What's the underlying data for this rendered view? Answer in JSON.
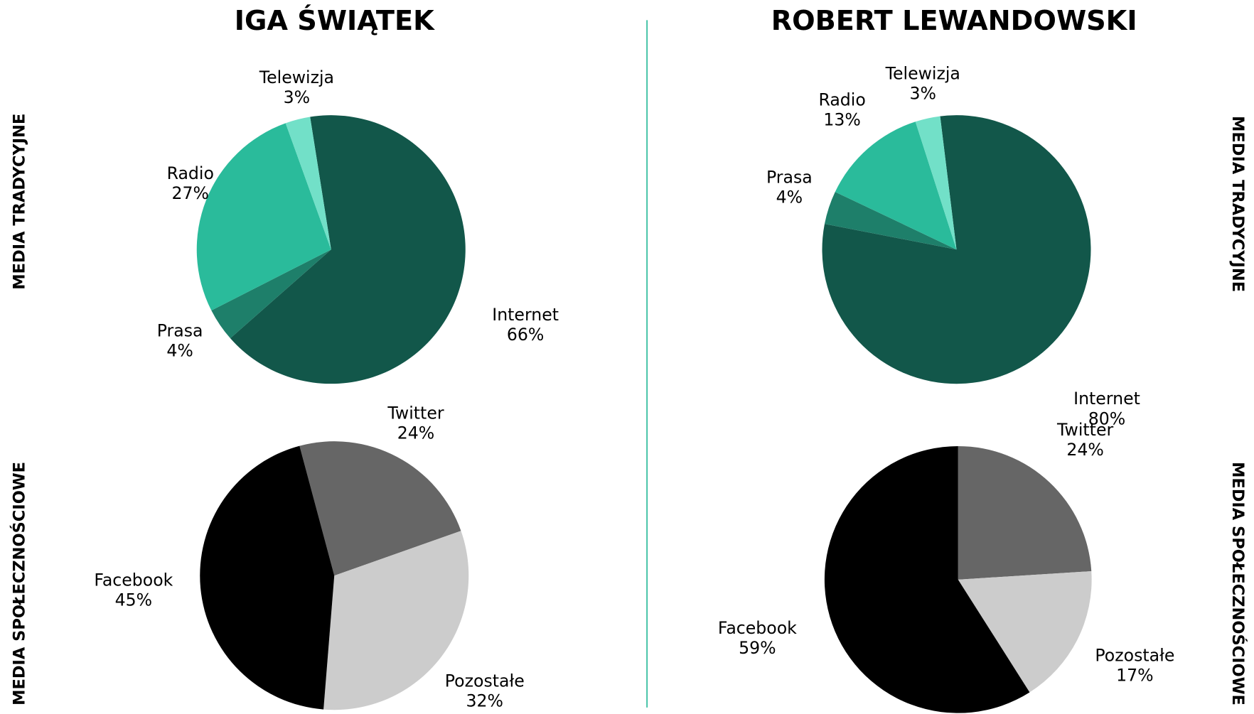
{
  "titles": [
    "IGA ŚWIĄTEK",
    "ROBERT LEWANDOWSKI"
  ],
  "row_labels": [
    "MEDIA TRADYCYJNE",
    "MEDIA SPOŁECZNOŚCIOWE"
  ],
  "chart_data": [
    {
      "type": "pie",
      "categories": [
        "Internet",
        "Prasa",
        "Radio",
        "Telewizja"
      ],
      "values": [
        66,
        4,
        27,
        3
      ],
      "value_labels": [
        "66%",
        "4%",
        "27%",
        "3%"
      ],
      "colors": [
        "#12574a",
        "#1e7f6a",
        "#2abb9b",
        "#72e0c8"
      ]
    },
    {
      "type": "pie",
      "categories": [
        "Internet",
        "Prasa",
        "Radio",
        "Telewizja"
      ],
      "values": [
        80,
        4,
        13,
        3
      ],
      "value_labels": [
        "80%",
        "4%",
        "13%",
        "3%"
      ],
      "colors": [
        "#12574a",
        "#1e7f6a",
        "#2abb9b",
        "#72e0c8"
      ]
    },
    {
      "type": "pie",
      "categories": [
        "Twitter",
        "Pozostałe",
        "Facebook"
      ],
      "values": [
        24,
        32,
        45
      ],
      "value_labels": [
        "24%",
        "32%",
        "45%"
      ],
      "colors": [
        "#666666",
        "#cccccc",
        "#000000"
      ]
    },
    {
      "type": "pie",
      "categories": [
        "Twitter",
        "Pozostałe",
        "Facebook"
      ],
      "values": [
        24,
        17,
        59
      ],
      "value_labels": [
        "24%",
        "17%",
        "59%"
      ],
      "colors": [
        "#666666",
        "#cccccc",
        "#000000"
      ]
    }
  ]
}
